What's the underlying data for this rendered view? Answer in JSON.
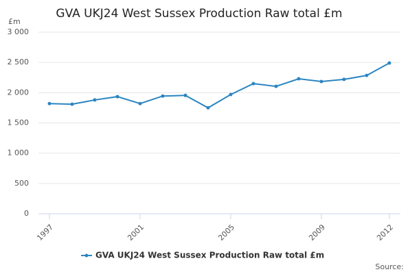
{
  "chart_data": {
    "type": "line",
    "title": "GVA UKJ24 West Sussex Production Raw total £m",
    "y_label": "£m",
    "source": "Source:",
    "x": [
      1997,
      1998,
      1999,
      2000,
      2001,
      2002,
      2003,
      2004,
      2005,
      2006,
      2007,
      2008,
      2009,
      2010,
      2011,
      2012
    ],
    "series": [
      {
        "name": "GVA UKJ24 West Sussex Production Raw total £m",
        "color": "#2a85c2",
        "values": [
          1820,
          1810,
          1880,
          1935,
          1820,
          1945,
          1955,
          1750,
          1970,
          2150,
          2105,
          2230,
          2185,
          2220,
          2285,
          2490
        ]
      }
    ],
    "xlim": [
      1997,
      2012
    ],
    "xticks": [
      1997,
      2001,
      2005,
      2009,
      2012
    ],
    "ylim": [
      0,
      3000
    ],
    "yticks": [
      0,
      500,
      {
        "value": 1000,
        "label": "1 000"
      },
      {
        "value": 1500,
        "label": "1 500"
      },
      {
        "value": 2000,
        "label": "2 000"
      },
      {
        "value": 2500,
        "label": "2 500"
      },
      {
        "value": 3000,
        "label": "3 000"
      }
    ],
    "grid": true,
    "legend": "bottom"
  }
}
